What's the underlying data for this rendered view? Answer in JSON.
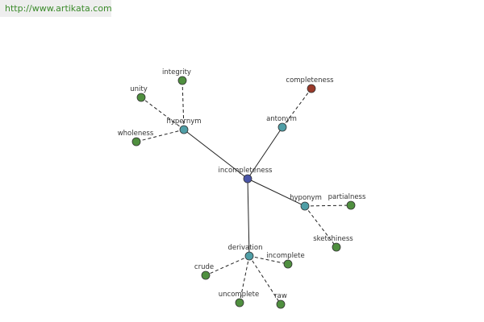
{
  "header": {
    "url": "http://www.artikata.com"
  },
  "nodes": [
    {
      "label": "incompleteness"
    },
    {
      "label": "hypernym"
    },
    {
      "label": "antonym"
    },
    {
      "label": "hyponym"
    },
    {
      "label": "derivation"
    },
    {
      "label": "integrity"
    },
    {
      "label": "unity"
    },
    {
      "label": "wholeness"
    },
    {
      "label": "completeness"
    },
    {
      "label": "partialness"
    },
    {
      "label": "sketchiness"
    },
    {
      "label": "incomplete"
    },
    {
      "label": "crude"
    },
    {
      "label": "uncomplete"
    },
    {
      "label": "raw"
    }
  ]
}
